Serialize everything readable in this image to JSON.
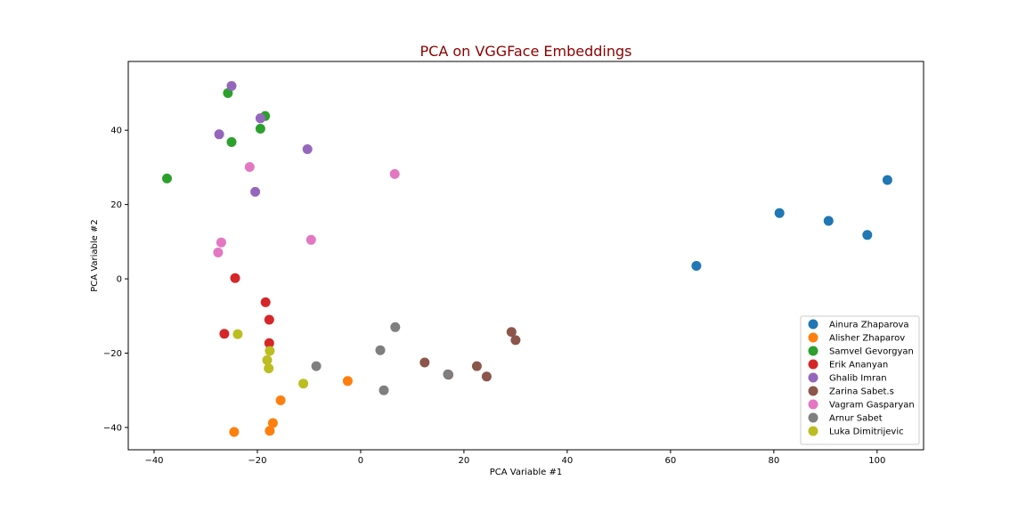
{
  "chart_data": {
    "type": "scatter",
    "title": "PCA on VGGFace Embeddings",
    "title_color": "#8b0000",
    "xlabel": "PCA Variable #1",
    "ylabel": "PCA Variable #2",
    "xlim": [
      -45,
      109
    ],
    "ylim": [
      -46,
      58.5
    ],
    "xticks": [
      -40,
      -20,
      0,
      20,
      40,
      60,
      80,
      100
    ],
    "yticks": [
      -40,
      -20,
      0,
      20,
      40
    ],
    "grid": false,
    "legend_position": "lower-right",
    "series": [
      {
        "name": "Ainura Zhaparova",
        "color": "#1f77b4",
        "points": [
          [
            65.0,
            3.5
          ],
          [
            81.1,
            17.7
          ],
          [
            90.6,
            15.6
          ],
          [
            98.1,
            11.8
          ],
          [
            102.0,
            26.6
          ]
        ]
      },
      {
        "name": "Alisher Zhaparov",
        "color": "#ff7f0e",
        "points": [
          [
            -2.5,
            -27.5
          ],
          [
            -15.5,
            -32.7
          ],
          [
            -17.0,
            -38.8
          ],
          [
            -17.6,
            -40.9
          ],
          [
            -24.5,
            -41.2
          ]
        ]
      },
      {
        "name": "Samvel Gevorgyan",
        "color": "#2ca02c",
        "points": [
          [
            -37.5,
            27.0
          ],
          [
            -25.7,
            50.0
          ],
          [
            -25.0,
            36.8
          ],
          [
            -19.4,
            40.4
          ],
          [
            -18.5,
            43.8
          ]
        ]
      },
      {
        "name": "Erik Ananyan",
        "color": "#d62728",
        "points": [
          [
            -24.3,
            0.2
          ],
          [
            -18.4,
            -6.3
          ],
          [
            -17.7,
            -11.0
          ],
          [
            -17.7,
            -17.3
          ],
          [
            -26.4,
            -14.8
          ]
        ]
      },
      {
        "name": "Ghalib Imran",
        "color": "#9467bd",
        "points": [
          [
            -25.0,
            51.9
          ],
          [
            -27.4,
            38.9
          ],
          [
            -19.4,
            43.2
          ],
          [
            -20.4,
            23.4
          ],
          [
            -10.3,
            34.9
          ]
        ]
      },
      {
        "name": "Zarina Sabet.s",
        "color": "#8c564b",
        "points": [
          [
            29.2,
            -14.3
          ],
          [
            30.0,
            -16.5
          ],
          [
            12.4,
            -22.5
          ],
          [
            17.0,
            -25.8
          ],
          [
            22.5,
            -23.5
          ],
          [
            24.4,
            -26.3
          ]
        ]
      },
      {
        "name": "Vagram Gasparyan",
        "color": "#e377c2",
        "points": [
          [
            -21.5,
            30.1
          ],
          [
            6.6,
            28.2
          ],
          [
            -27.0,
            9.8
          ],
          [
            -27.6,
            7.1
          ],
          [
            -9.6,
            10.5
          ]
        ]
      },
      {
        "name": "Arnur Sabet",
        "color": "#7f7f7f",
        "points": [
          [
            6.7,
            -13.0
          ],
          [
            3.8,
            -19.2
          ],
          [
            -8.6,
            -23.5
          ],
          [
            4.5,
            -30.0
          ],
          [
            16.9,
            -25.7
          ]
        ]
      },
      {
        "name": "Luka Dimitrijevic",
        "color": "#bcbd22",
        "points": [
          [
            -23.8,
            -14.9
          ],
          [
            -17.6,
            -19.4
          ],
          [
            -18.1,
            -21.9
          ],
          [
            -17.8,
            -24.1
          ],
          [
            -11.1,
            -28.2
          ]
        ]
      }
    ]
  }
}
